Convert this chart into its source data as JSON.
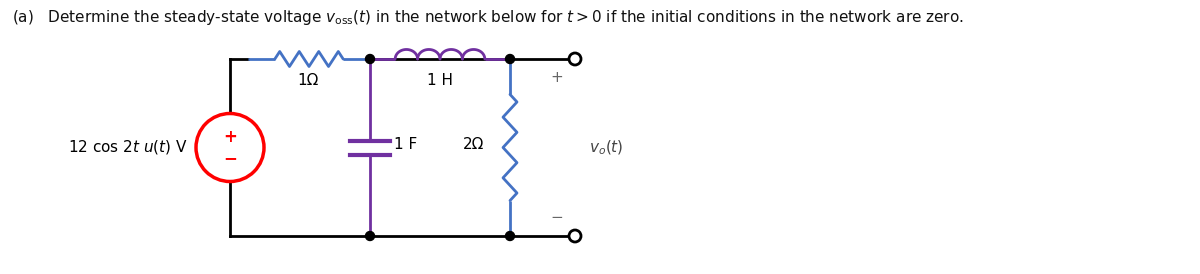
{
  "title_text": "(a)   Determine the steady-state voltage $v_{\\mathrm{oss}}(t)$ in the network below for $t > 0$ if the initial conditions in the network are zero.",
  "source_label": "12 cos 2$t$ $u(t)$ V",
  "resistor1_label": "1Ω",
  "inductor_label": "1 H",
  "capacitor_label": "1 F",
  "resistor2_label": "2Ω",
  "vo_label": "$v_o(t)$",
  "plus_label": "+",
  "minus_label": "−",
  "color_resistor1": "#4472C4",
  "color_inductor": "#7030A0",
  "color_resistor2": "#4472C4",
  "color_capacitor": "#7030A0",
  "color_source": "#FF0000",
  "color_wire": "#000000",
  "color_terminal": "#000000",
  "bg_color": "#FFFFFF",
  "lw_wire": 2.0,
  "lw_component": 2.0,
  "font_size_title": 11,
  "font_size_label": 11
}
